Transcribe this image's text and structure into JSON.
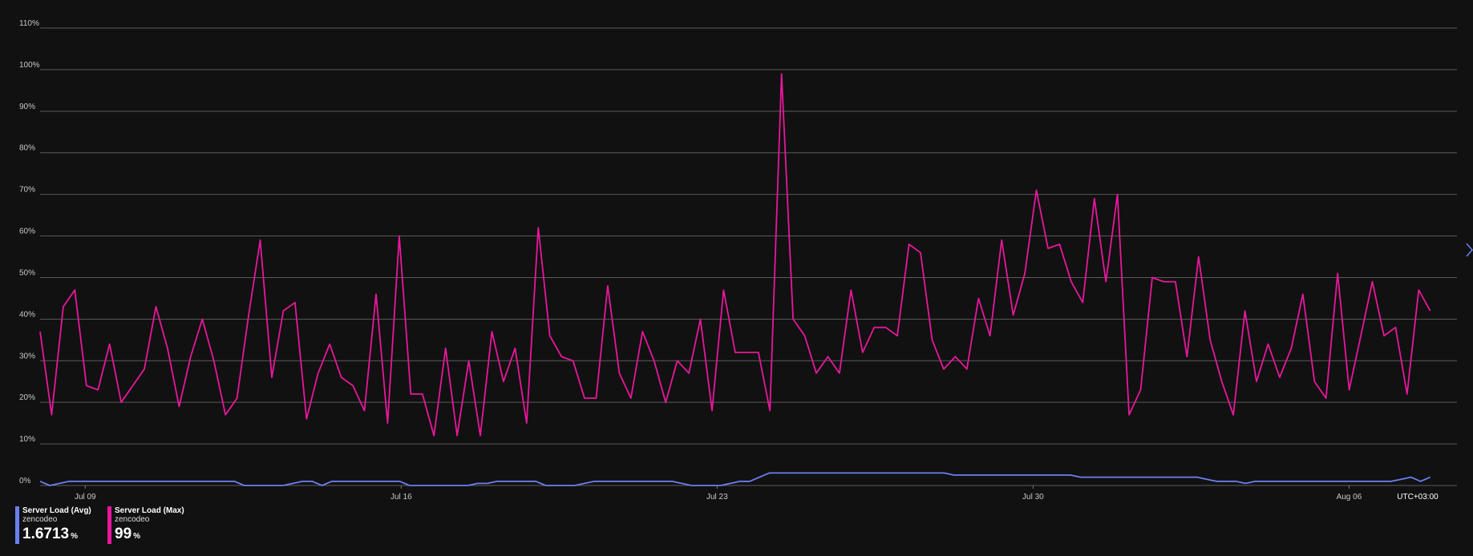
{
  "colors": {
    "background": "#111111",
    "avg_series": "#6b7ff0",
    "max_series": "#e8179c",
    "grid": "#5a5a5a"
  },
  "timezone_label": "UTC+03:00",
  "legend": [
    {
      "name": "Server Load (Avg)",
      "sub": "zencodeo",
      "value": "1.6713",
      "unit": "%"
    },
    {
      "name": "Server Load (Max)",
      "sub": "zencodeo",
      "value": "99",
      "unit": "%"
    }
  ],
  "icons": {
    "next": "chevron-right-icon"
  },
  "chart_data": {
    "type": "line",
    "title": "",
    "xlabel": "",
    "ylabel": "",
    "ylim": [
      0,
      110
    ],
    "yticks": [
      "0%",
      "10%",
      "20%",
      "30%",
      "40%",
      "50%",
      "60%",
      "70%",
      "80%",
      "90%",
      "100%",
      "110%"
    ],
    "xticks": [
      {
        "label": "Jul 09",
        "t": 9
      },
      {
        "label": "Jul 16",
        "t": 16
      },
      {
        "label": "Jul 23",
        "t": 23
      },
      {
        "label": "Jul 30",
        "t": 30
      },
      {
        "label": "Aug 06",
        "t": 37
      }
    ],
    "xlim": [
      8.0,
      39.0
    ],
    "grid": true,
    "legend_position": "bottom-left",
    "series": [
      {
        "name": "Server Load (Avg)",
        "color": "#6b7ff0",
        "values": [
          1,
          0,
          0.5,
          1,
          1,
          1,
          1,
          1,
          1,
          1,
          1,
          1,
          1,
          1,
          1,
          1,
          1,
          1,
          1,
          1,
          1,
          0,
          0,
          0,
          0,
          0,
          0.5,
          1,
          1,
          0,
          1,
          1,
          1,
          1,
          1,
          1,
          1,
          1,
          0,
          0,
          0,
          0,
          0,
          0,
          0,
          0.5,
          0.5,
          1,
          1,
          1,
          1,
          1,
          0,
          0,
          0,
          0,
          0.5,
          1,
          1,
          1,
          1,
          1,
          1,
          1,
          1,
          1,
          0.5,
          0,
          0,
          0,
          0,
          0.5,
          1,
          1,
          2,
          3,
          3,
          3,
          3,
          3,
          3,
          3,
          3,
          3,
          3,
          3,
          3,
          3,
          3,
          3,
          3,
          3,
          3,
          3,
          2.5,
          2.5,
          2.5,
          2.5,
          2.5,
          2.5,
          2.5,
          2.5,
          2.5,
          2.5,
          2.5,
          2.5,
          2.5,
          2,
          2,
          2,
          2,
          2,
          2,
          2,
          2,
          2,
          2,
          2,
          2,
          2,
          1.5,
          1,
          1,
          1,
          0.5,
          1,
          1,
          1,
          1,
          1,
          1,
          1,
          1,
          1,
          1,
          1,
          1,
          1,
          1,
          1,
          1.5,
          2,
          1,
          2
        ]
      },
      {
        "name": "Server Load (Max)",
        "color": "#e8179c",
        "values": [
          37,
          17,
          43,
          47,
          24,
          23,
          34,
          20,
          24,
          28,
          43,
          33,
          19,
          31,
          40,
          30,
          17,
          21,
          41,
          59,
          26,
          42,
          44,
          16,
          27,
          34,
          26,
          24,
          18,
          46,
          15,
          60,
          22,
          22,
          12,
          33,
          12,
          30,
          12,
          37,
          25,
          33,
          15,
          62,
          36,
          31,
          30,
          21,
          21,
          48,
          27,
          21,
          37,
          30,
          20,
          30,
          27,
          40,
          18,
          47,
          32,
          32,
          32,
          18,
          99,
          40,
          36,
          27,
          31,
          27,
          47,
          32,
          38,
          38,
          36,
          58,
          56,
          35,
          28,
          31,
          28,
          45,
          36,
          59,
          41,
          51,
          71,
          57,
          58,
          49,
          44,
          69,
          49,
          70,
          17,
          23,
          50,
          49,
          49,
          31,
          55,
          35,
          25,
          17,
          42,
          25,
          34,
          26,
          33,
          46,
          25,
          21,
          51,
          23,
          36,
          49,
          36,
          38,
          22,
          47,
          42
        ]
      }
    ]
  }
}
